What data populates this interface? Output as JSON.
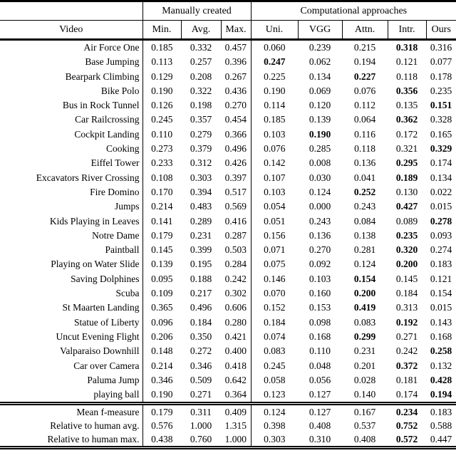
{
  "colors": {
    "text": "#000000",
    "background": "#ffffff",
    "rule": "#000000"
  },
  "table": {
    "group_headers": [
      {
        "label": "",
        "span": 1
      },
      {
        "label": "Manually created",
        "span": 3
      },
      {
        "label": "Computational approaches",
        "span": 5
      }
    ],
    "columns": [
      "Video",
      "Min.",
      "Avg.",
      "Max.",
      "Uni.",
      "VGG",
      "Attn.",
      "Intr.",
      "Ours"
    ],
    "rows": [
      {
        "video": "Air Force One",
        "values": [
          "0.185",
          "0.332",
          "0.457",
          "0.060",
          "0.239",
          "0.215",
          "0.318",
          "0.316"
        ],
        "bold": 6
      },
      {
        "video": "Base Jumping",
        "values": [
          "0.113",
          "0.257",
          "0.396",
          "0.247",
          "0.062",
          "0.194",
          "0.121",
          "0.077"
        ],
        "bold": 3
      },
      {
        "video": "Bearpark Climbing",
        "values": [
          "0.129",
          "0.208",
          "0.267",
          "0.225",
          "0.134",
          "0.227",
          "0.118",
          "0.178"
        ],
        "bold": 5
      },
      {
        "video": "Bike Polo",
        "values": [
          "0.190",
          "0.322",
          "0.436",
          "0.190",
          "0.069",
          "0.076",
          "0.356",
          "0.235"
        ],
        "bold": 6
      },
      {
        "video": "Bus in Rock Tunnel",
        "values": [
          "0.126",
          "0.198",
          "0.270",
          "0.114",
          "0.120",
          "0.112",
          "0.135",
          "0.151"
        ],
        "bold": 7
      },
      {
        "video": "Car Railcrossing",
        "values": [
          "0.245",
          "0.357",
          "0.454",
          "0.185",
          "0.139",
          "0.064",
          "0.362",
          "0.328"
        ],
        "bold": 6
      },
      {
        "video": "Cockpit Landing",
        "values": [
          "0.110",
          "0.279",
          "0.366",
          "0.103",
          "0.190",
          "0.116",
          "0.172",
          "0.165"
        ],
        "bold": 4
      },
      {
        "video": "Cooking",
        "values": [
          "0.273",
          "0.379",
          "0.496",
          "0.076",
          "0.285",
          "0.118",
          "0.321",
          "0.329"
        ],
        "bold": 7
      },
      {
        "video": "Eiffel Tower",
        "values": [
          "0.233",
          "0.312",
          "0.426",
          "0.142",
          "0.008",
          "0.136",
          "0.295",
          "0.174"
        ],
        "bold": 6
      },
      {
        "video": "Excavators River Crossing",
        "values": [
          "0.108",
          "0.303",
          "0.397",
          "0.107",
          "0.030",
          "0.041",
          "0.189",
          "0.134"
        ],
        "bold": 6
      },
      {
        "video": "Fire Domino",
        "values": [
          "0.170",
          "0.394",
          "0.517",
          "0.103",
          "0.124",
          "0.252",
          "0.130",
          "0.022"
        ],
        "bold": 5
      },
      {
        "video": "Jumps",
        "values": [
          "0.214",
          "0.483",
          "0.569",
          "0.054",
          "0.000",
          "0.243",
          "0.427",
          "0.015"
        ],
        "bold": 6
      },
      {
        "video": "Kids Playing in Leaves",
        "values": [
          "0.141",
          "0.289",
          "0.416",
          "0.051",
          "0.243",
          "0.084",
          "0.089",
          "0.278"
        ],
        "bold": 7
      },
      {
        "video": "Notre Dame",
        "values": [
          "0.179",
          "0.231",
          "0.287",
          "0.156",
          "0.136",
          "0.138",
          "0.235",
          "0.093"
        ],
        "bold": 6
      },
      {
        "video": "Paintball",
        "values": [
          "0.145",
          "0.399",
          "0.503",
          "0.071",
          "0.270",
          "0.281",
          "0.320",
          "0.274"
        ],
        "bold": 6
      },
      {
        "video": "Playing on Water Slide",
        "values": [
          "0.139",
          "0.195",
          "0.284",
          "0.075",
          "0.092",
          "0.124",
          "0.200",
          "0.183"
        ],
        "bold": 6
      },
      {
        "video": "Saving Dolphines",
        "values": [
          "0.095",
          "0.188",
          "0.242",
          "0.146",
          "0.103",
          "0.154",
          "0.145",
          "0.121"
        ],
        "bold": 5
      },
      {
        "video": "Scuba",
        "values": [
          "0.109",
          "0.217",
          "0.302",
          "0.070",
          "0.160",
          "0.200",
          "0.184",
          "0.154"
        ],
        "bold": 5
      },
      {
        "video": "St Maarten Landing",
        "values": [
          "0.365",
          "0.496",
          "0.606",
          "0.152",
          "0.153",
          "0.419",
          "0.313",
          "0.015"
        ],
        "bold": 5
      },
      {
        "video": "Statue of Liberty",
        "values": [
          "0.096",
          "0.184",
          "0.280",
          "0.184",
          "0.098",
          "0.083",
          "0.192",
          "0.143"
        ],
        "bold": 6
      },
      {
        "video": "Uncut Evening Flight",
        "values": [
          "0.206",
          "0.350",
          "0.421",
          "0.074",
          "0.168",
          "0.299",
          "0.271",
          "0.168"
        ],
        "bold": 5
      },
      {
        "video": "Valparaiso Downhill",
        "values": [
          "0.148",
          "0.272",
          "0.400",
          "0.083",
          "0.110",
          "0.231",
          "0.242",
          "0.258"
        ],
        "bold": 7
      },
      {
        "video": "Car over Camera",
        "values": [
          "0.214",
          "0.346",
          "0.418",
          "0.245",
          "0.048",
          "0.201",
          "0.372",
          "0.132"
        ],
        "bold": 6
      },
      {
        "video": "Paluma Jump",
        "values": [
          "0.346",
          "0.509",
          "0.642",
          "0.058",
          "0.056",
          "0.028",
          "0.181",
          "0.428"
        ],
        "bold": 7
      },
      {
        "video": "playing ball",
        "values": [
          "0.190",
          "0.271",
          "0.364",
          "0.123",
          "0.127",
          "0.140",
          "0.174",
          "0.194"
        ],
        "bold": 7
      }
    ],
    "summary_rows": [
      {
        "label": "Mean f-measure",
        "values": [
          "0.179",
          "0.311",
          "0.409",
          "0.124",
          "0.127",
          "0.167",
          "0.234",
          "0.183"
        ],
        "bold": 6
      },
      {
        "label": "Relative to human avg.",
        "values": [
          "0.576",
          "1.000",
          "1.315",
          "0.398",
          "0.408",
          "0.537",
          "0.752",
          "0.588"
        ],
        "bold": 6
      },
      {
        "label": "Relative to human max.",
        "values": [
          "0.438",
          "0.760",
          "1.000",
          "0.303",
          "0.310",
          "0.408",
          "0.572",
          "0.447"
        ],
        "bold": 6
      }
    ]
  }
}
